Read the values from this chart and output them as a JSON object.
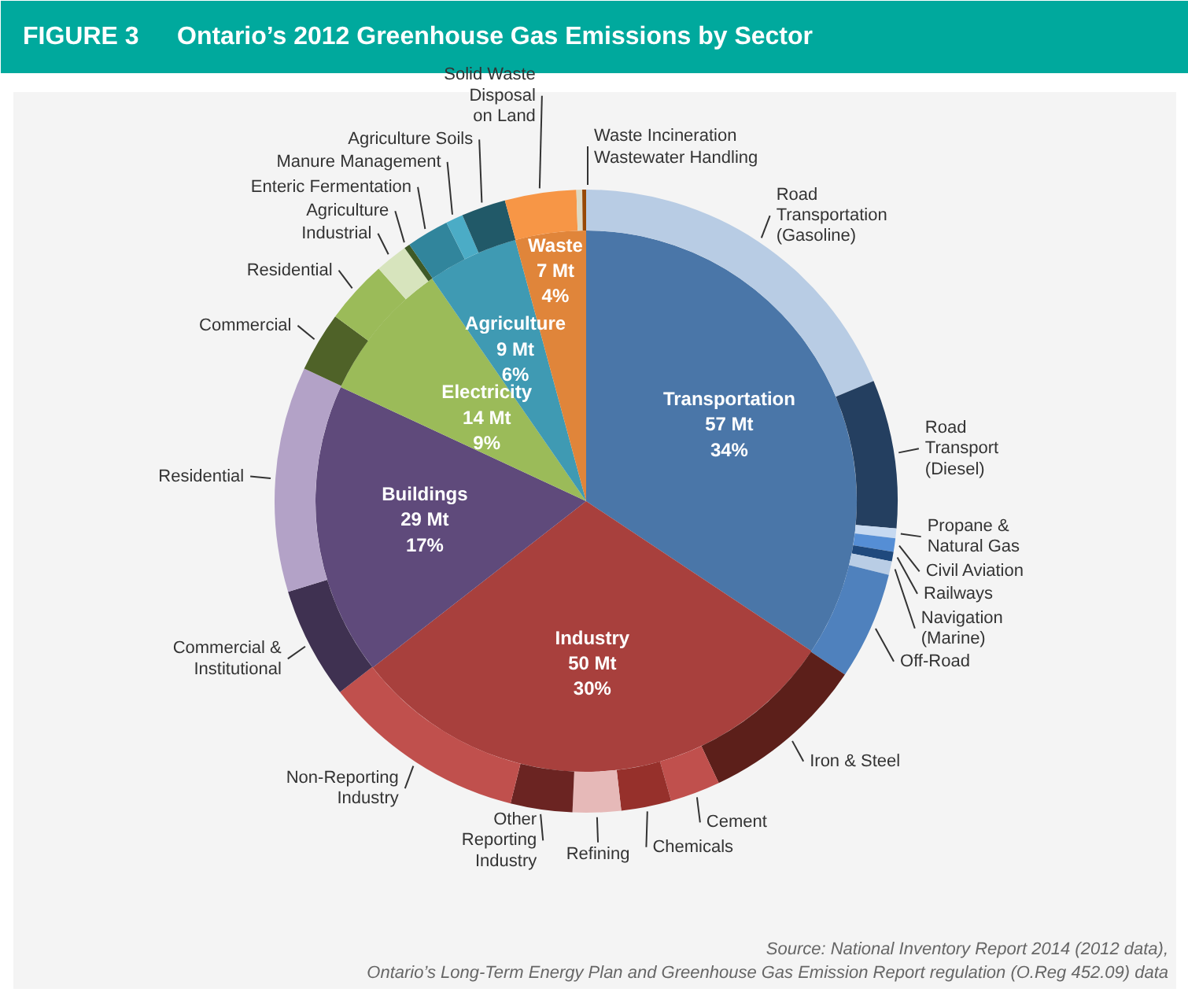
{
  "chart_data": [
    {
      "type": "pie",
      "title": "Ontario’s 2012 Greenhouse Gas Emissions by Sector",
      "annotations": [
        "FIGURE 3",
        "Source: National Inventory Report 2014 (2012 data),",
        "Ontario’s Long-Term Energy Plan and Greenhouse Gas Emission Report regulation (O.Reg 452.09) data"
      ],
      "categories": [
        "Transportation",
        "Industry",
        "Buildings",
        "Electricity",
        "Agriculture",
        "Waste"
      ],
      "values": [
        57,
        50,
        29,
        14,
        9,
        7
      ],
      "value_labels": [
        "57 Mt\n34%",
        "50 Mt\n30%",
        "29 Mt\n17%",
        "14 Mt\n9%",
        "9 Mt\n6%",
        "7 Mt\n4%"
      ],
      "colors": [
        "#4a76a8",
        "#a8403d",
        "#5f4a7b",
        "#9bbb59",
        "#3f9ab3",
        "#e0853a"
      ]
    },
    {
      "type": "donut",
      "categories": [
        "Road\nTransportation\n(Gasoline)",
        "Road\nTransport\n(Diesel)",
        "Propane &\nNatural Gas",
        "Civil Aviation",
        "Railways",
        "Navigation\n(Marine)",
        "Off-Road",
        "Iron & Steel",
        "Cement",
        "Chemicals",
        "Refining",
        "Other\nReporting\nIndustry",
        "Non-Reporting\nIndustry",
        "Commercial &\nInstitutional",
        "Residential",
        "Commercial",
        "Residential",
        "Industrial",
        "Agriculture",
        "Enteric Fermentation",
        "Manure Management",
        "Agriculture Soils",
        "Solid Waste\nDisposal\non Land",
        "Wastewater Handling",
        "Waste Incineration"
      ],
      "values": [
        18.7,
        7.7,
        0.5,
        0.7,
        0.5,
        0.7,
        5.6,
        8.6,
        2.6,
        2.6,
        2.5,
        3.2,
        10.6,
        5.8,
        11.7,
        3.1,
        3.3,
        1.7,
        0.3,
        2.2,
        0.9,
        2.3,
        3.7,
        0.3,
        0.2
      ],
      "colors": [
        "#b8cce4",
        "#243f60",
        "#c6d9f1",
        "#558ed5",
        "#1f497d",
        "#b9cde5",
        "#4f81bd",
        "#5c1f1a",
        "#c0504d",
        "#96302b",
        "#e6b9b8",
        "#6b2422",
        "#c0504d",
        "#3f3151",
        "#b3a2c7",
        "#4f6228",
        "#9bbb59",
        "#d7e4bd",
        "#3f5a27",
        "#31859c",
        "#4bacc6",
        "#215968",
        "#f79646",
        "#ddd9c3",
        "#974806"
      ]
    }
  ]
}
